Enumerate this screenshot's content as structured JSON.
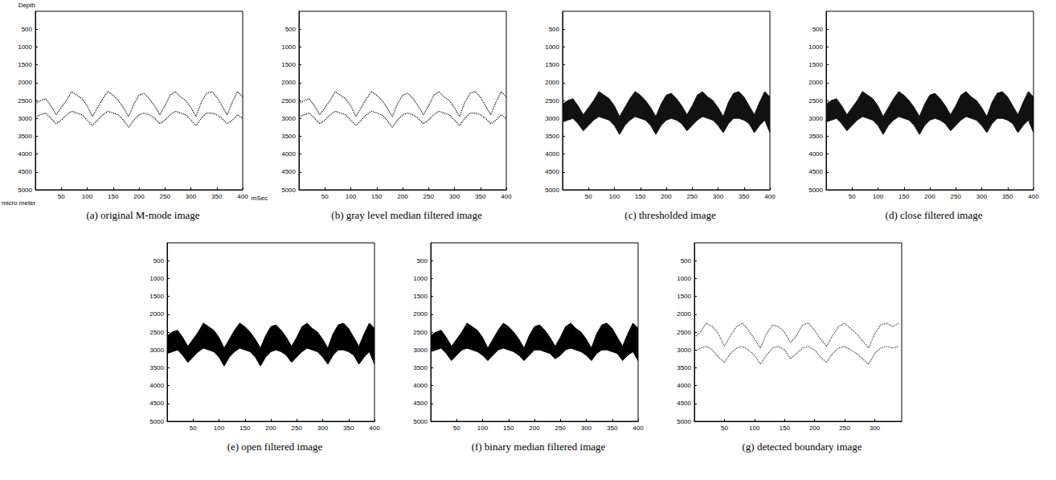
{
  "chart_data": [
    {
      "type": "line",
      "title": "(a) original M-mode image",
      "xlabel": "mSec",
      "ylabel": "Depth",
      "annotations": [
        "micro meter"
      ],
      "xlim": [
        0,
        400
      ],
      "xticks": [
        50,
        100,
        150,
        200,
        250,
        300,
        350,
        400
      ],
      "ylim": [
        0,
        5000
      ],
      "yticks": [
        500,
        1000,
        1500,
        2000,
        2500,
        3000,
        3500,
        4000,
        4500,
        5000
      ],
      "grid": false,
      "x": [
        0,
        10,
        20,
        30,
        40,
        50,
        60,
        70,
        80,
        90,
        100,
        110,
        120,
        130,
        140,
        150,
        160,
        170,
        180,
        190,
        200,
        210,
        220,
        230,
        240,
        250,
        260,
        270,
        280,
        290,
        300,
        310,
        320,
        330,
        340,
        350,
        360,
        370,
        380,
        390,
        400
      ],
      "series": [
        {
          "color": "#000000",
          "line_style": "dotted",
          "values": [
            2600,
            2500,
            2450,
            2650,
            2900,
            2700,
            2500,
            2250,
            2350,
            2450,
            2650,
            2950,
            2700,
            2450,
            2250,
            2350,
            2500,
            2700,
            2950,
            2600,
            2350,
            2300,
            2450,
            2650,
            2900,
            2650,
            2350,
            2250,
            2400,
            2500,
            2700,
            2950,
            2550,
            2300,
            2250,
            2400,
            2650,
            2900,
            2550,
            2250,
            2400
          ]
        },
        {
          "color": "#000000",
          "line_style": "dotted",
          "values": [
            2950,
            2900,
            2850,
            3000,
            3150,
            3050,
            2900,
            2800,
            2850,
            2900,
            3050,
            3200,
            3050,
            2900,
            2800,
            2850,
            2900,
            3050,
            3250,
            3050,
            2900,
            2850,
            2900,
            3000,
            3150,
            3050,
            2900,
            2800,
            2850,
            2900,
            3050,
            3200,
            3000,
            2850,
            2850,
            2900,
            3000,
            3150,
            3050,
            2900,
            3000
          ]
        }
      ]
    },
    {
      "type": "line",
      "title": "(b) gray level median filtered image",
      "xlim": [
        0,
        400
      ],
      "xticks": [
        50,
        100,
        150,
        200,
        250,
        300,
        350,
        400
      ],
      "ylim": [
        0,
        5000
      ],
      "yticks": [
        500,
        1000,
        1500,
        2000,
        2500,
        3000,
        3500,
        4000,
        4500,
        5000
      ],
      "grid": false,
      "x": [
        0,
        10,
        20,
        30,
        40,
        50,
        60,
        70,
        80,
        90,
        100,
        110,
        120,
        130,
        140,
        150,
        160,
        170,
        180,
        190,
        200,
        210,
        220,
        230,
        240,
        250,
        260,
        270,
        280,
        290,
        300,
        310,
        320,
        330,
        340,
        350,
        360,
        370,
        380,
        390,
        400
      ],
      "series": [
        {
          "color": "#000000",
          "line_style": "dotted",
          "values": [
            2600,
            2500,
            2450,
            2650,
            2900,
            2700,
            2500,
            2250,
            2350,
            2450,
            2650,
            2950,
            2700,
            2450,
            2250,
            2350,
            2500,
            2700,
            2950,
            2600,
            2350,
            2300,
            2450,
            2650,
            2900,
            2650,
            2350,
            2250,
            2400,
            2500,
            2700,
            2950,
            2550,
            2300,
            2250,
            2400,
            2650,
            2900,
            2550,
            2250,
            2400
          ]
        },
        {
          "color": "#000000",
          "line_style": "dotted",
          "values": [
            2950,
            2900,
            2850,
            3000,
            3150,
            3050,
            2900,
            2800,
            2850,
            2900,
            3050,
            3200,
            3050,
            2900,
            2800,
            2850,
            2900,
            3050,
            3250,
            3050,
            2900,
            2850,
            2900,
            3000,
            3150,
            3050,
            2900,
            2800,
            2850,
            2900,
            3050,
            3200,
            3000,
            2850,
            2850,
            2900,
            3000,
            3150,
            3050,
            2900,
            3000
          ]
        }
      ]
    },
    {
      "type": "area",
      "title": "(c) thresholded image",
      "xlim": [
        0,
        400
      ],
      "xticks": [
        50,
        100,
        150,
        200,
        250,
        300,
        350,
        400
      ],
      "ylim": [
        0,
        5000
      ],
      "yticks": [
        500,
        1000,
        1500,
        2000,
        2500,
        3000,
        3500,
        4000,
        4500,
        5000
      ],
      "grid": false,
      "x": [
        0,
        10,
        20,
        30,
        40,
        50,
        60,
        70,
        80,
        90,
        100,
        110,
        120,
        130,
        140,
        150,
        160,
        170,
        180,
        190,
        200,
        210,
        220,
        230,
        240,
        250,
        260,
        270,
        280,
        290,
        300,
        310,
        320,
        330,
        340,
        350,
        360,
        370,
        380,
        390,
        400
      ],
      "series": [
        {
          "color": "#111111",
          "values": [
            2600,
            2500,
            2450,
            2650,
            2900,
            2700,
            2500,
            2250,
            2350,
            2450,
            2650,
            2950,
            2700,
            2450,
            2250,
            2350,
            2500,
            2700,
            2950,
            2600,
            2350,
            2300,
            2450,
            2650,
            2900,
            2650,
            2350,
            2250,
            2400,
            2500,
            2700,
            2950,
            2550,
            2300,
            2250,
            2400,
            2650,
            2900,
            2550,
            2250,
            2400
          ]
        },
        {
          "color": "#111111",
          "values": [
            3100,
            3050,
            3000,
            3150,
            3350,
            3200,
            3050,
            2950,
            3000,
            3050,
            3200,
            3450,
            3200,
            3050,
            2950,
            3000,
            3050,
            3200,
            3450,
            3200,
            3050,
            3000,
            3050,
            3150,
            3350,
            3200,
            3050,
            2950,
            3000,
            3050,
            3200,
            3400,
            3150,
            3000,
            3000,
            3050,
            3150,
            3400,
            3200,
            3050,
            3400
          ]
        }
      ]
    },
    {
      "type": "area",
      "title": "(d) close filtered image",
      "xlim": [
        0,
        400
      ],
      "xticks": [
        50,
        100,
        150,
        200,
        250,
        300,
        350,
        400
      ],
      "ylim": [
        0,
        5000
      ],
      "yticks": [
        500,
        1000,
        1500,
        2000,
        2500,
        3000,
        3500,
        4000,
        4500,
        5000
      ],
      "grid": false,
      "x": [
        0,
        10,
        20,
        30,
        40,
        50,
        60,
        70,
        80,
        90,
        100,
        110,
        120,
        130,
        140,
        150,
        160,
        170,
        180,
        190,
        200,
        210,
        220,
        230,
        240,
        250,
        260,
        270,
        280,
        290,
        300,
        310,
        320,
        330,
        340,
        350,
        360,
        370,
        380,
        390,
        400
      ],
      "series": [
        {
          "color": "#111111",
          "values": [
            2600,
            2500,
            2450,
            2650,
            2900,
            2700,
            2500,
            2250,
            2350,
            2450,
            2650,
            2950,
            2700,
            2450,
            2250,
            2350,
            2500,
            2700,
            2950,
            2600,
            2350,
            2300,
            2450,
            2650,
            2900,
            2650,
            2350,
            2250,
            2400,
            2500,
            2700,
            2950,
            2550,
            2300,
            2250,
            2400,
            2650,
            2900,
            2550,
            2250,
            2400
          ]
        },
        {
          "color": "#111111",
          "values": [
            3100,
            3050,
            3000,
            3150,
            3350,
            3200,
            3050,
            2950,
            3000,
            3050,
            3200,
            3450,
            3200,
            3050,
            2950,
            3000,
            3050,
            3200,
            3450,
            3200,
            3050,
            3000,
            3050,
            3150,
            3350,
            3200,
            3050,
            2950,
            3000,
            3050,
            3200,
            3400,
            3150,
            3000,
            3000,
            3050,
            3150,
            3400,
            3200,
            3050,
            3400
          ]
        }
      ]
    },
    {
      "type": "area",
      "title": "(e) open filtered image",
      "xlim": [
        0,
        400
      ],
      "xticks": [
        50,
        100,
        150,
        200,
        250,
        300,
        350,
        400
      ],
      "ylim": [
        0,
        5000
      ],
      "yticks": [
        500,
        1000,
        1500,
        2000,
        2500,
        3000,
        3500,
        4000,
        4500,
        5000
      ],
      "grid": false,
      "x": [
        0,
        10,
        20,
        30,
        40,
        50,
        60,
        70,
        80,
        90,
        100,
        110,
        120,
        130,
        140,
        150,
        160,
        170,
        180,
        190,
        200,
        210,
        220,
        230,
        240,
        250,
        260,
        270,
        280,
        290,
        300,
        310,
        320,
        330,
        340,
        350,
        360,
        370,
        380,
        390,
        400
      ],
      "series": [
        {
          "color": "#000000",
          "values": [
            2600,
            2500,
            2450,
            2650,
            2900,
            2700,
            2500,
            2250,
            2350,
            2450,
            2650,
            2950,
            2700,
            2450,
            2250,
            2350,
            2500,
            2700,
            2950,
            2600,
            2350,
            2300,
            2450,
            2650,
            2900,
            2650,
            2350,
            2250,
            2400,
            2500,
            2700,
            2950,
            2550,
            2300,
            2250,
            2400,
            2650,
            2900,
            2550,
            2250,
            2400
          ]
        },
        {
          "color": "#000000",
          "values": [
            3100,
            3050,
            3000,
            3150,
            3350,
            3200,
            3050,
            2950,
            3000,
            3050,
            3200,
            3450,
            3200,
            3050,
            2950,
            3000,
            3050,
            3200,
            3450,
            3200,
            3050,
            3000,
            3050,
            3150,
            3350,
            3200,
            3050,
            2950,
            3000,
            3050,
            3200,
            3400,
            3150,
            3000,
            3000,
            3050,
            3150,
            3400,
            3200,
            3050,
            3400
          ]
        }
      ]
    },
    {
      "type": "area",
      "title": "(f) binary median filtered image",
      "xlim": [
        0,
        400
      ],
      "xticks": [
        50,
        100,
        150,
        200,
        250,
        300,
        350,
        400
      ],
      "ylim": [
        0,
        5000
      ],
      "yticks": [
        500,
        1000,
        1500,
        2000,
        2500,
        3000,
        3500,
        4000,
        4500,
        5000
      ],
      "grid": false,
      "x": [
        0,
        10,
        20,
        30,
        40,
        50,
        60,
        70,
        80,
        90,
        100,
        110,
        120,
        130,
        140,
        150,
        160,
        170,
        180,
        190,
        200,
        210,
        220,
        230,
        240,
        250,
        260,
        270,
        280,
        290,
        300,
        310,
        320,
        330,
        340,
        350,
        360,
        370,
        380,
        390,
        400
      ],
      "series": [
        {
          "color": "#000000",
          "values": [
            2600,
            2500,
            2450,
            2650,
            2900,
            2700,
            2500,
            2250,
            2350,
            2450,
            2650,
            2950,
            2700,
            2450,
            2250,
            2350,
            2500,
            2700,
            2950,
            2600,
            2350,
            2300,
            2450,
            2650,
            2900,
            2650,
            2350,
            2250,
            2400,
            2500,
            2700,
            2950,
            2550,
            2300,
            2250,
            2400,
            2650,
            2900,
            2550,
            2250,
            2400
          ]
        },
        {
          "color": "#000000",
          "values": [
            3050,
            3000,
            2950,
            3100,
            3300,
            3150,
            3000,
            2950,
            3000,
            3050,
            3150,
            3300,
            3150,
            3000,
            2950,
            3000,
            3050,
            3150,
            3300,
            3150,
            3000,
            3000,
            3050,
            3100,
            3250,
            3150,
            3000,
            2950,
            3000,
            3050,
            3150,
            3300,
            3100,
            3000,
            3000,
            3050,
            3100,
            3300,
            3150,
            3050,
            3300
          ]
        }
      ]
    },
    {
      "type": "line",
      "title": "(g) detected boundary image",
      "xlim": [
        0,
        345
      ],
      "xticks": [
        50,
        100,
        150,
        200,
        250,
        300
      ],
      "ylim": [
        0,
        5000
      ],
      "yticks": [
        500,
        1000,
        1500,
        2000,
        2500,
        3000,
        3500,
        4000,
        4500,
        5000
      ],
      "grid": false,
      "x": [
        0,
        10,
        20,
        30,
        40,
        50,
        60,
        70,
        80,
        90,
        100,
        110,
        120,
        130,
        140,
        150,
        160,
        170,
        180,
        190,
        200,
        210,
        220,
        230,
        240,
        250,
        260,
        270,
        280,
        290,
        300,
        310,
        320,
        330,
        340
      ],
      "series": [
        {
          "color": "#333333",
          "line_style": "dotted",
          "values": [
            2650,
            2500,
            2250,
            2350,
            2550,
            2900,
            2600,
            2350,
            2250,
            2450,
            2700,
            2950,
            2550,
            2300,
            2350,
            2500,
            2800,
            2600,
            2300,
            2250,
            2450,
            2700,
            2900,
            2600,
            2350,
            2250,
            2400,
            2550,
            2750,
            2950,
            2550,
            2300,
            2250,
            2350,
            2250
          ]
        },
        {
          "color": "#333333",
          "line_style": "dotted",
          "values": [
            3050,
            2950,
            2900,
            3000,
            3200,
            3350,
            3100,
            2950,
            2900,
            3000,
            3150,
            3400,
            3150,
            2950,
            2900,
            3000,
            3250,
            3100,
            2950,
            2900,
            3000,
            3200,
            3350,
            3100,
            2950,
            2900,
            3000,
            3100,
            3250,
            3400,
            3100,
            2950,
            2900,
            2950,
            2900
          ]
        }
      ]
    }
  ]
}
